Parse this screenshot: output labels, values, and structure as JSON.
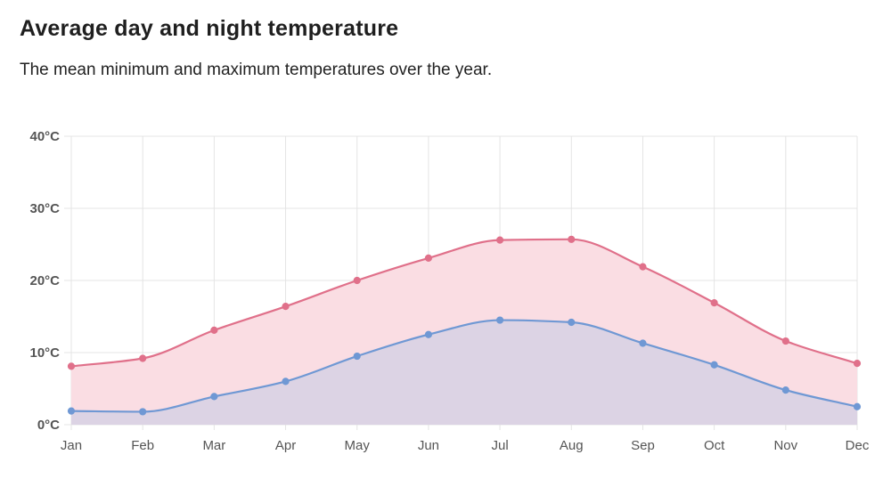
{
  "header": {
    "title": "Average day and night temperature",
    "subtitle": "The mean minimum and maximum temperatures over the year."
  },
  "colors": {
    "max_line": "#e0708a",
    "max_fill": "#fadde3",
    "min_line": "#6f98d4",
    "min_fill": "#dcd3e4",
    "grid": "#e4e4e4",
    "tick_text": "#555555"
  },
  "chart_data": {
    "type": "area",
    "categories": [
      "Jan",
      "Feb",
      "Mar",
      "Apr",
      "May",
      "Jun",
      "Jul",
      "Aug",
      "Sep",
      "Oct",
      "Nov",
      "Dec"
    ],
    "y_tick_labels": [
      "0°C",
      "10°C",
      "20°C",
      "30°C",
      "40°C"
    ],
    "ylim": [
      0,
      40
    ],
    "grid": true,
    "series": [
      {
        "key": "max",
        "values": [
          8.1,
          9.2,
          13.1,
          16.4,
          20.0,
          23.1,
          25.6,
          25.7,
          21.9,
          16.9,
          11.6,
          8.5
        ]
      },
      {
        "key": "min",
        "values": [
          1.9,
          1.8,
          3.9,
          6.0,
          9.5,
          12.5,
          14.5,
          14.2,
          11.3,
          8.3,
          4.8,
          2.5
        ]
      }
    ]
  }
}
